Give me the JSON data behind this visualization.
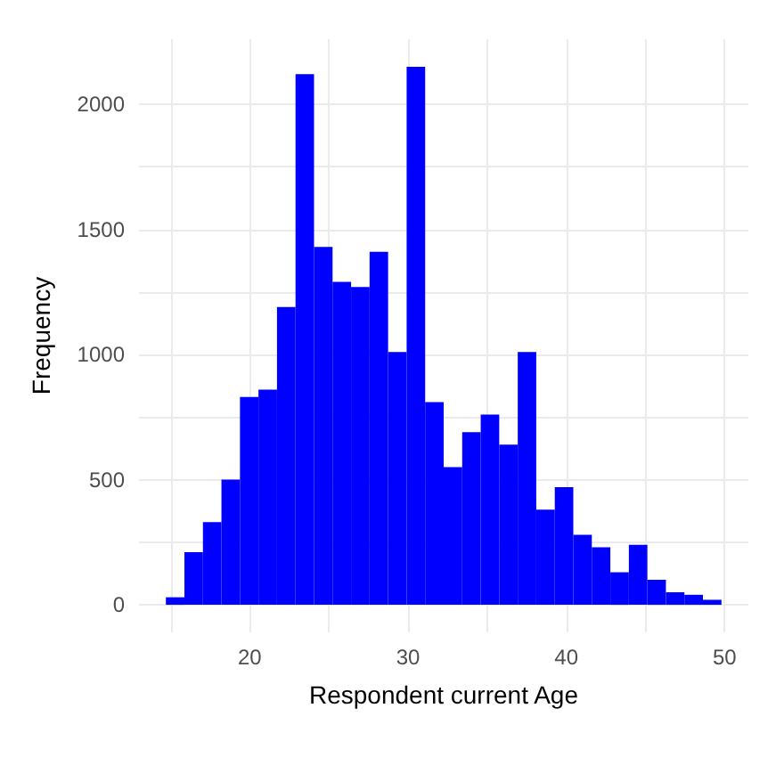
{
  "chart_data": {
    "type": "histogram",
    "xlabel": "Respondent current Age",
    "ylabel": "Frequency",
    "color": "#0000ff",
    "bins": [
      14.7,
      15.87,
      17.04,
      18.21,
      19.38,
      20.55,
      21.72,
      22.89,
      24.06,
      25.23,
      26.4,
      27.57,
      28.74,
      29.91,
      31.08,
      32.25,
      33.42,
      34.59,
      35.76,
      36.93,
      38.1,
      39.27,
      40.44,
      41.61,
      42.78,
      43.95,
      45.12,
      46.29,
      47.46,
      48.63,
      49.8
    ],
    "values": [
      30,
      210,
      330,
      500,
      830,
      860,
      1190,
      2120,
      1430,
      1290,
      1270,
      1410,
      1010,
      2150,
      810,
      550,
      690,
      760,
      640,
      1010,
      380,
      470,
      280,
      230,
      130,
      240,
      100,
      50,
      40,
      20
    ],
    "xlim": [
      13,
      51.5
    ],
    "ylim": [
      -110,
      2260
    ],
    "xticks": [
      {
        "value": 15,
        "label": null
      },
      20,
      {
        "value": 25,
        "label": null
      },
      30,
      {
        "value": 35,
        "label": null
      },
      40,
      {
        "value": 45,
        "label": null
      },
      50
    ],
    "yticks": [
      0,
      {
        "value": 250,
        "label": null
      },
      500,
      {
        "value": 750,
        "label": null
      },
      1000,
      {
        "value": 1250,
        "label": null
      },
      1500,
      {
        "value": 1750,
        "label": null
      },
      2000
    ],
    "grid": true
  }
}
